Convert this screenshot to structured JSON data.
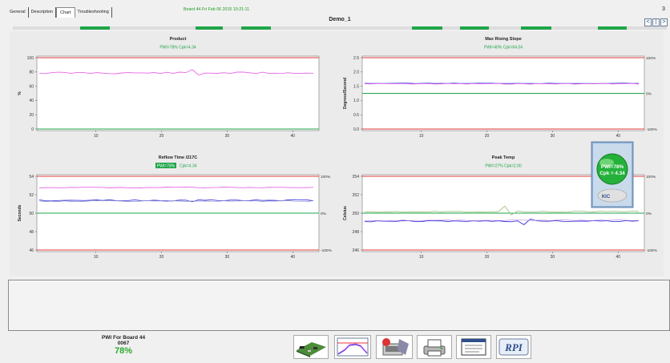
{
  "tabs": [
    {
      "label": "General"
    },
    {
      "label": "Description"
    },
    {
      "label": "Chart"
    },
    {
      "label": "Troubleshooting"
    }
  ],
  "board_info": "Board 44   Fri Feb 06 2015 10:21:11",
  "panel_title": "Demo_1",
  "corner_label": "3",
  "nav": {
    "prev": "<",
    "mid": "|",
    "next": ">"
  },
  "colors": {
    "limit": "#e23a3a",
    "spec": "#1fa548",
    "pink": "#e866e8",
    "blue": "#3a3adc",
    "olive": "#a4c48a",
    "label_green": "#1fa548"
  },
  "charts": [
    {
      "title": "Product",
      "stats": "PWI=78%   Cpk=4.34",
      "ylabel": "%",
      "yticks": [
        "100",
        "80",
        "60",
        "40",
        "20",
        "0"
      ],
      "right_ticks": [],
      "xticks": [
        "10",
        "20",
        "30",
        "40"
      ]
    },
    {
      "title": "Max Rising Slope",
      "stats": "PWI=40%   Cpk=64.04",
      "ylabel": "Degrees/Second",
      "yticks": [
        "2.5",
        "2.0",
        "1.5",
        "1.0",
        "0.5",
        "0.0"
      ],
      "right_ticks": [
        "100%",
        "0%",
        "-100%"
      ],
      "xticks": [
        "10",
        "20",
        "30",
        "40"
      ]
    },
    {
      "title": "Reflow Time /217C",
      "stats_badge": "PWI=78%",
      "stats": "Cpk=4.34",
      "ylabel": "Seconds",
      "yticks": [
        "54",
        "52",
        "50",
        "48",
        "46"
      ],
      "right_ticks": [
        "100%",
        "0%",
        "-100%"
      ],
      "xticks": [
        "10",
        "20",
        "30",
        "40"
      ]
    },
    {
      "title": "Peak Temp",
      "stats": "PWI=27%   Cpk=2.00",
      "ylabel": "Celsius",
      "yticks": [
        "254",
        "252",
        "250",
        "248",
        "246"
      ],
      "right_ticks": [
        "100%",
        "0%",
        "-100%"
      ],
      "xticks": [
        "10",
        "20",
        "30",
        "40"
      ]
    }
  ],
  "badge": {
    "line1": "PWI=78%",
    "line2": "Cpk = 4.34",
    "brand": "KIC"
  },
  "pwi": {
    "title": "PWI For Board 44",
    "id": "0067",
    "value": "78%"
  },
  "toolbar": [
    {
      "name": "board-icon"
    },
    {
      "name": "profile-chart-icon"
    },
    {
      "name": "oven-tool-icon"
    },
    {
      "name": "print-icon"
    },
    {
      "name": "window-icon"
    },
    {
      "name": "rpi-icon",
      "label": "RPI"
    }
  ]
}
